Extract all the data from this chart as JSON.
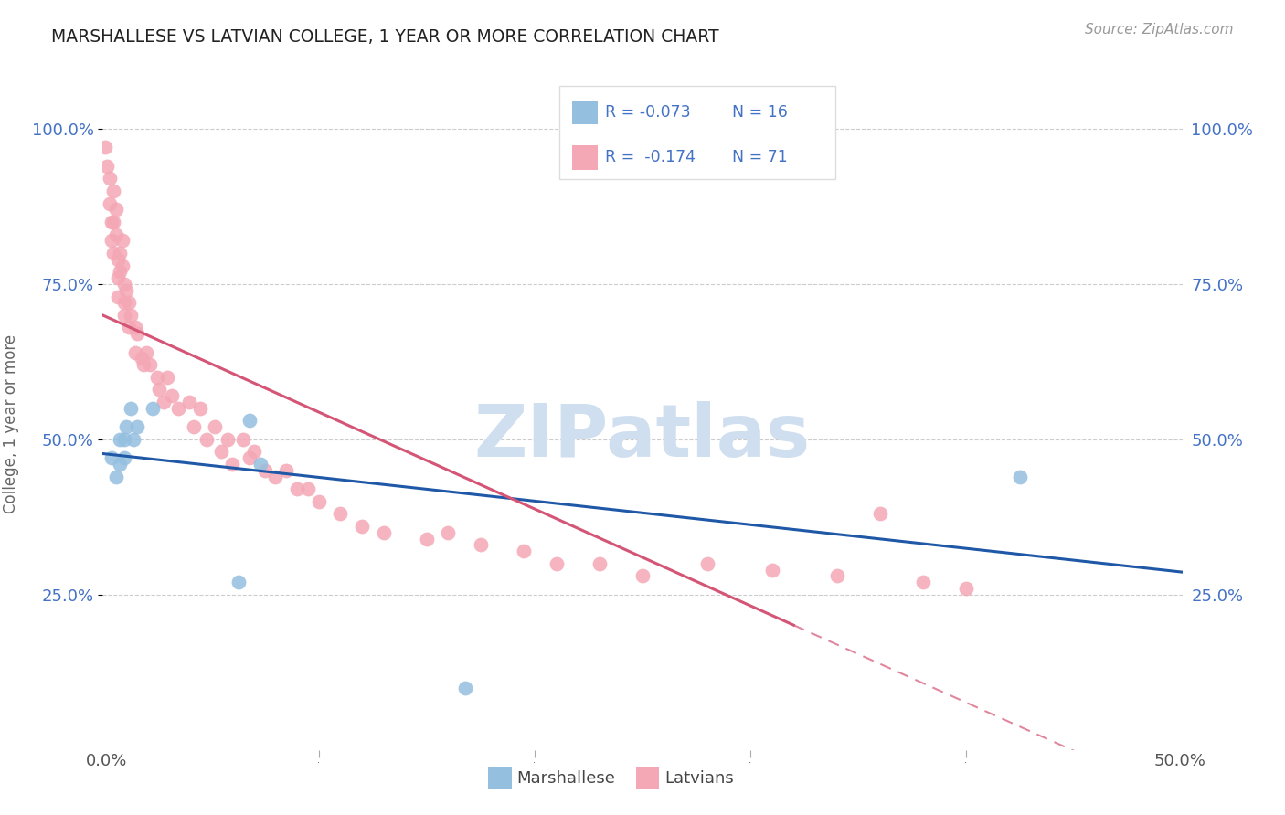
{
  "title": "MARSHALLESE VS LATVIAN COLLEGE, 1 YEAR OR MORE CORRELATION CHART",
  "source": "Source: ZipAtlas.com",
  "ylabel": "College, 1 year or more",
  "xlim": [
    0.0,
    0.5
  ],
  "ylim": [
    0.0,
    1.05
  ],
  "yticks": [
    0.25,
    0.5,
    0.75,
    1.0
  ],
  "ytick_labels": [
    "25.0%",
    "50.0%",
    "75.0%",
    "100.0%"
  ],
  "legend_r_blue": "R = -0.073",
  "legend_n_blue": "N = 16",
  "legend_r_pink": "R =  -0.174",
  "legend_n_pink": "N = 71",
  "blue_scatter_color": "#94bfdf",
  "pink_scatter_color": "#f4a7b5",
  "line_blue_color": "#2058a8",
  "line_pink_solid_color": "#d45575",
  "watermark_color": "#d0dff0",
  "marshallese_x": [
    0.004,
    0.006,
    0.008,
    0.008,
    0.01,
    0.01,
    0.011,
    0.013,
    0.014,
    0.016,
    0.023,
    0.063,
    0.068,
    0.073,
    0.168,
    0.425
  ],
  "marshallese_y": [
    0.47,
    0.44,
    0.5,
    0.46,
    0.5,
    0.47,
    0.52,
    0.55,
    0.5,
    0.52,
    0.55,
    0.27,
    0.53,
    0.46,
    0.1,
    0.44
  ],
  "latvian_x": [
    0.001,
    0.002,
    0.003,
    0.003,
    0.004,
    0.004,
    0.005,
    0.005,
    0.005,
    0.006,
    0.006,
    0.007,
    0.007,
    0.007,
    0.008,
    0.008,
    0.009,
    0.009,
    0.01,
    0.01,
    0.01,
    0.011,
    0.012,
    0.012,
    0.013,
    0.015,
    0.015,
    0.016,
    0.018,
    0.019,
    0.02,
    0.022,
    0.025,
    0.026,
    0.028,
    0.03,
    0.032,
    0.035,
    0.04,
    0.042,
    0.045,
    0.048,
    0.052,
    0.055,
    0.058,
    0.06,
    0.065,
    0.068,
    0.07,
    0.075,
    0.08,
    0.085,
    0.09,
    0.095,
    0.1,
    0.11,
    0.12,
    0.13,
    0.15,
    0.16,
    0.175,
    0.195,
    0.21,
    0.23,
    0.25,
    0.28,
    0.31,
    0.34,
    0.36,
    0.38,
    0.4
  ],
  "latvian_y": [
    0.97,
    0.94,
    0.92,
    0.88,
    0.85,
    0.82,
    0.9,
    0.85,
    0.8,
    0.87,
    0.83,
    0.79,
    0.76,
    0.73,
    0.8,
    0.77,
    0.82,
    0.78,
    0.75,
    0.72,
    0.7,
    0.74,
    0.72,
    0.68,
    0.7,
    0.68,
    0.64,
    0.67,
    0.63,
    0.62,
    0.64,
    0.62,
    0.6,
    0.58,
    0.56,
    0.6,
    0.57,
    0.55,
    0.56,
    0.52,
    0.55,
    0.5,
    0.52,
    0.48,
    0.5,
    0.46,
    0.5,
    0.47,
    0.48,
    0.45,
    0.44,
    0.45,
    0.42,
    0.42,
    0.4,
    0.38,
    0.36,
    0.35,
    0.34,
    0.35,
    0.33,
    0.32,
    0.3,
    0.3,
    0.28,
    0.3,
    0.29,
    0.28,
    0.38,
    0.27,
    0.26
  ]
}
